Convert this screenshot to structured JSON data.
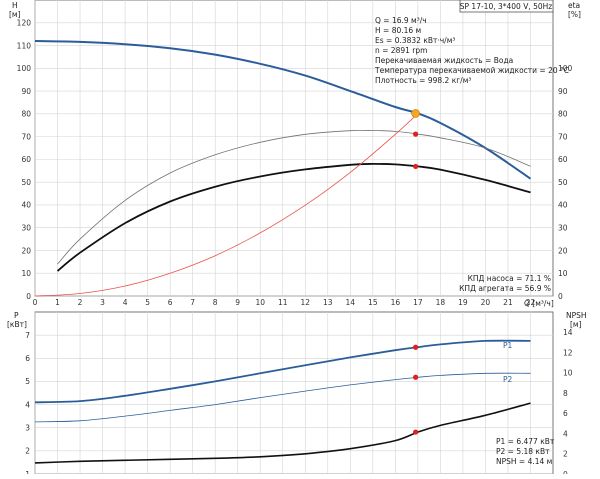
{
  "chart_data": [
    {
      "type": "line",
      "title": "SP 17-10, 3*400 V, 50Hz",
      "ylabel_left": [
        "H",
        "[м]"
      ],
      "ylabel_right": [
        "eta",
        "[%]"
      ],
      "xlabel": "Q [м³/ч]",
      "xlim": [
        0,
        23
      ],
      "ylim_left": [
        0,
        130
      ],
      "ylim_right": [
        0,
        130
      ],
      "x_ticks": [
        0,
        1,
        2,
        3,
        4,
        5,
        6,
        7,
        8,
        9,
        10,
        11,
        12,
        13,
        14,
        15,
        16,
        17,
        18,
        19,
        20,
        21,
        22
      ],
      "y_ticks_left": [
        0,
        10,
        20,
        30,
        40,
        50,
        60,
        70,
        80,
        90,
        100,
        110,
        120
      ],
      "y_ticks_right": [
        0,
        10,
        20,
        30,
        40,
        50,
        60,
        70,
        80,
        90,
        100
      ],
      "grid": true,
      "info_lines": [
        "Q = 16.9 м³/ч",
        "H = 80.16 м",
        "Es = 0.3832 кВт·ч/м³",
        "n = 2891 rpm",
        "Перекачиваемая жидкость = Вода",
        "Температура перекачиваемой жидкости = 20 °C",
        "Плотность = 998.2 кг/м³"
      ],
      "eff_labels": [
        "КПД насоса = 71.1 %",
        "КПД агрегата = 56.9 %"
      ],
      "series": [
        {
          "role": "H",
          "color": "#2b5d9b",
          "width": 2,
          "x": [
            0,
            2,
            4,
            6,
            8,
            10,
            12,
            14,
            16,
            17,
            18,
            20,
            22
          ],
          "values": [
            112,
            111.6,
            110.6,
            108.8,
            106,
            102,
            96.8,
            90,
            83,
            80.2,
            76,
            65,
            51.5
          ]
        },
        {
          "role": "eta-pump",
          "color": "#707070",
          "width": 0.8,
          "x": [
            1,
            2,
            4,
            6,
            8,
            10,
            12,
            14,
            15,
            16,
            17,
            18,
            20,
            22
          ],
          "values": [
            14,
            25,
            42,
            54,
            62,
            67.5,
            71,
            72.6,
            72.7,
            72.3,
            71.1,
            69.5,
            65,
            57
          ]
        },
        {
          "role": "eta-total",
          "color": "#111111",
          "width": 1.8,
          "x": [
            1,
            2,
            4,
            6,
            8,
            10,
            12,
            14,
            15,
            16,
            17,
            18,
            20,
            22
          ],
          "values": [
            11,
            19,
            32,
            41.5,
            48,
            52.5,
            55.6,
            57.6,
            58,
            57.8,
            56.9,
            55.5,
            51,
            45.5
          ]
        },
        {
          "role": "system",
          "color": "#e8534a",
          "width": 0.8,
          "x": [
            0,
            2,
            4,
            6,
            8,
            10,
            12,
            14,
            16,
            17
          ],
          "values": [
            0,
            1.1,
            4.4,
            10,
            17.7,
            27.7,
            39.9,
            54.3,
            71,
            80.2
          ]
        }
      ],
      "markers": [
        {
          "x": 16.9,
          "y": 80.16,
          "color": "#f5a623",
          "kind": "duty"
        },
        {
          "x": 16.9,
          "y": 71.1,
          "color": "#e02020",
          "kind": "point"
        },
        {
          "x": 16.9,
          "y": 56.9,
          "color": "#e02020",
          "kind": "point"
        }
      ]
    },
    {
      "type": "line",
      "ylabel_left": [
        "P",
        "[кВт]"
      ],
      "ylabel_right": [
        "NPSH",
        "[м]"
      ],
      "xlim": [
        0,
        23
      ],
      "ylim_left": [
        1,
        8
      ],
      "ylim_right": [
        0,
        16
      ],
      "y_ticks_left": [
        1,
        2,
        3,
        4,
        5,
        6,
        7
      ],
      "y_ticks_right": [
        0,
        2,
        4,
        6,
        8,
        10,
        12,
        14
      ],
      "grid": true,
      "value_labels": [
        "P1 = 6.477 кВт",
        "P2 = 5.18 кВт",
        "NPSH = 4.14 м"
      ],
      "series": [
        {
          "name": "P1",
          "color": "#2b5d9b",
          "width": 1.8,
          "axis": "left",
          "x": [
            0,
            2,
            4,
            6,
            8,
            10,
            12,
            14,
            16,
            17,
            18,
            20,
            22
          ],
          "values": [
            4.1,
            4.15,
            4.38,
            4.68,
            5.0,
            5.35,
            5.7,
            6.04,
            6.35,
            6.48,
            6.6,
            6.75,
            6.75
          ]
        },
        {
          "name": "P2",
          "color": "#2b5d9b",
          "width": 0.8,
          "axis": "left",
          "x": [
            0,
            2,
            4,
            6,
            8,
            10,
            12,
            14,
            16,
            17,
            18,
            20,
            22
          ],
          "values": [
            3.25,
            3.3,
            3.5,
            3.75,
            4.0,
            4.3,
            4.58,
            4.85,
            5.08,
            5.18,
            5.26,
            5.35,
            5.35
          ]
        },
        {
          "name": "NPSH",
          "color": "#111111",
          "width": 1.6,
          "axis": "right",
          "x": [
            0,
            2,
            4,
            6,
            8,
            10,
            12,
            14,
            16,
            17,
            18,
            20,
            22
          ],
          "values": [
            1.1,
            1.25,
            1.35,
            1.45,
            1.55,
            1.7,
            2.0,
            2.5,
            3.3,
            4.14,
            4.8,
            5.8,
            7.0
          ]
        }
      ],
      "markers": [
        {
          "x": 16.9,
          "y": 6.477,
          "axis": "left",
          "color": "#e02020"
        },
        {
          "x": 16.9,
          "y": 5.18,
          "axis": "left",
          "color": "#e02020"
        },
        {
          "x": 16.9,
          "y": 4.14,
          "axis": "right",
          "color": "#e02020"
        }
      ]
    }
  ]
}
